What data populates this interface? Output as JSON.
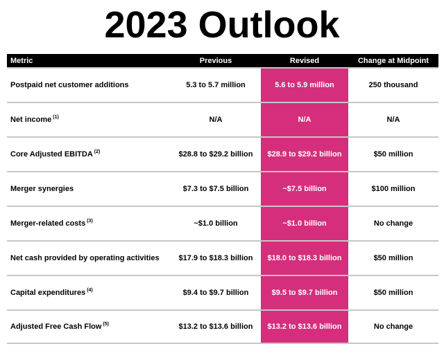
{
  "title": "2023 Outlook",
  "colors": {
    "accent_magenta": "#d52e7c",
    "header_bg": "#000000",
    "row_divider": "#c6c6c6",
    "revised_text": "#ffffff",
    "body_text": "#000000",
    "background": "#ffffff"
  },
  "table": {
    "columns": [
      "Metric",
      "Previous",
      "Revised",
      "Change at Midpoint"
    ],
    "rows": [
      {
        "metric": "Postpaid net customer additions",
        "footnote": "",
        "previous": "5.3 to 5.7 million",
        "revised": "5.6 to 5.9 million",
        "change": "250 thousand"
      },
      {
        "metric": "Net income",
        "footnote": "(1)",
        "previous": "N/A",
        "revised": "N/A",
        "change": "N/A"
      },
      {
        "metric": "Core Adjusted EBITDA",
        "footnote": "(2)",
        "previous": "$28.8 to $29.2 billion",
        "revised": "$28.9 to $29.2 billion",
        "change": "$50 million"
      },
      {
        "metric": "Merger synergies",
        "footnote": "",
        "previous": "$7.3 to $7.5 billion",
        "revised": "~$7.5 billion",
        "change": "$100 million"
      },
      {
        "metric": "Merger-related costs",
        "footnote": "(3)",
        "previous": "~$1.0 billion",
        "revised": "~$1.0 billion",
        "change": "No change"
      },
      {
        "metric": "Net cash provided by operating activities",
        "footnote": "",
        "previous": "$17.9 to $18.3 billion",
        "revised": "$18.0 to $18.3 billion",
        "change": "$50 million"
      },
      {
        "metric": "Capital expenditures",
        "footnote": "(4)",
        "previous": "$9.4 to $9.7 billion",
        "revised": "$9.5 to $9.7 billion",
        "change": "$50 million"
      },
      {
        "metric": "Adjusted Free Cash Flow",
        "footnote": "(5)",
        "previous": "$13.2 to $13.6 billion",
        "revised": "$13.2 to $13.6 billion",
        "change": "No change"
      }
    ]
  }
}
